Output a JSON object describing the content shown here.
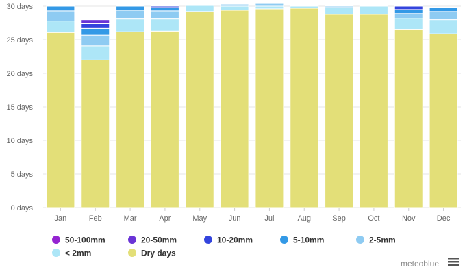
{
  "chart_data": {
    "type": "bar",
    "stacked": true,
    "categories": [
      "Jan",
      "Feb",
      "Mar",
      "Apr",
      "May",
      "Jun",
      "Jul",
      "Aug",
      "Sep",
      "Oct",
      "Nov",
      "Dec"
    ],
    "ylim": [
      0,
      30
    ],
    "yticks": [
      0,
      5,
      10,
      15,
      20,
      25,
      30
    ],
    "ytick_suffix": " days",
    "grid": "horizontal",
    "legend_position": "bottom-left",
    "series": [
      {
        "name": "Dry days",
        "color": "#e3df78",
        "values": [
          26.1,
          22.0,
          26.2,
          26.3,
          29.2,
          29.4,
          29.6,
          29.7,
          28.8,
          28.8,
          26.5,
          25.9
        ]
      },
      {
        "name": "< 2mm",
        "color": "#ade6f7",
        "values": [
          1.7,
          2.1,
          1.9,
          1.8,
          0.9,
          0.6,
          0.4,
          0.3,
          1.0,
          1.2,
          1.7,
          2.1
        ]
      },
      {
        "name": "2-5mm",
        "color": "#8ecbf2",
        "values": [
          1.5,
          1.6,
          1.3,
          1.2,
          0,
          0.3,
          0.4,
          0,
          0.2,
          0,
          0.7,
          1.2
        ]
      },
      {
        "name": "5-10mm",
        "color": "#3399e6",
        "values": [
          0.7,
          1.0,
          0.6,
          0.5,
          0,
          0,
          0,
          0,
          0,
          0,
          0.6,
          0.6
        ]
      },
      {
        "name": "10-20mm",
        "color": "#3344dd",
        "values": [
          0,
          0.7,
          0,
          0.2,
          0,
          0,
          0,
          0,
          0,
          0,
          0.5,
          0
        ]
      },
      {
        "name": "20-50mm",
        "color": "#6a34d6",
        "values": [
          0,
          0.6,
          0,
          0,
          0,
          0,
          0,
          0,
          0,
          0,
          0,
          0
        ]
      },
      {
        "name": "50-100mm",
        "color": "#9424d1",
        "values": [
          0,
          0.1,
          0,
          0,
          0,
          0,
          0,
          0,
          0,
          0,
          0,
          0
        ]
      }
    ]
  },
  "legend_order": [
    "50-100mm",
    "20-50mm",
    "10-20mm",
    "5-10mm",
    "2-5mm",
    "< 2mm",
    "Dry days"
  ],
  "credit": "meteoblue",
  "menu_icon": "hamburger-menu-icon"
}
